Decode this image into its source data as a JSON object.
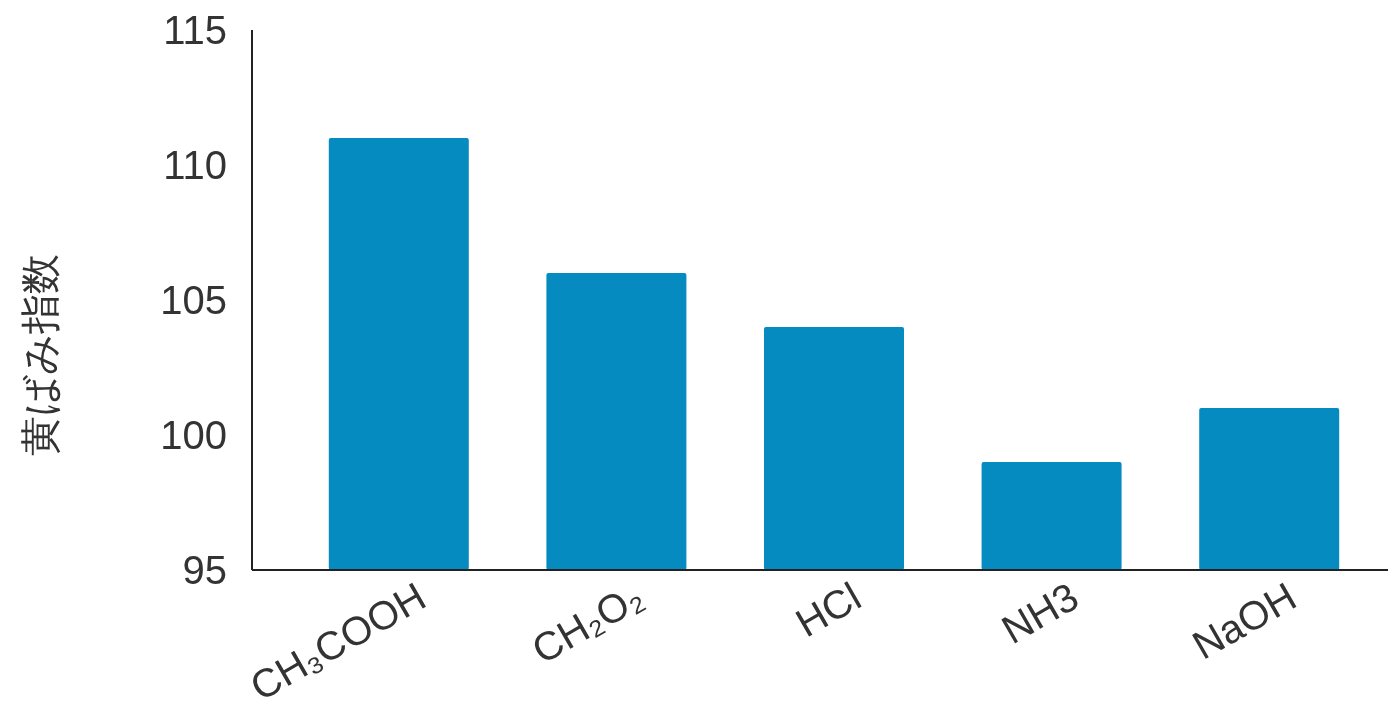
{
  "chart_data": {
    "type": "bar",
    "ylabel": "黄ばみ指数",
    "categories": [
      "CH₃COOH",
      "CH₂O₂",
      "HCl",
      "NH3",
      "NaOH"
    ],
    "values": [
      111,
      106,
      104,
      99,
      101
    ],
    "color": "#068bc1",
    "ylim": [
      95,
      115
    ],
    "yticks": [
      95,
      100,
      105,
      110,
      115
    ]
  }
}
